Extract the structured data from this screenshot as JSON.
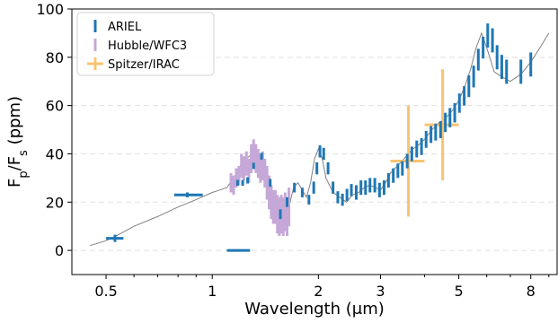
{
  "chart_data": {
    "type": "scatter",
    "xlabel": "Wavelength (μm)",
    "ylabel_parts": [
      "F",
      "p",
      "/F",
      "s",
      " (ppm)"
    ],
    "x_scale": "log",
    "xlim": [
      0.4,
      9.5
    ],
    "ylim": [
      -10,
      100
    ],
    "x_ticks": [
      {
        "value": 0.5,
        "label": "0.5"
      },
      {
        "value": 1,
        "label": "1"
      },
      {
        "value": 2,
        "label": "2"
      },
      {
        "value": 3,
        "label": "3"
      },
      {
        "value": 5,
        "label": "5"
      },
      {
        "value": 8,
        "label": "8"
      }
    ],
    "y_ticks": [
      0,
      20,
      40,
      60,
      80,
      100
    ],
    "grid": "horizontal dashed",
    "legend_position": "top-left",
    "legend": [
      {
        "label": "ARIEL",
        "color": "#1f77b4",
        "marker": "vertical-bar"
      },
      {
        "label": "Hubble/WFC3",
        "color": "#c5a8d8",
        "marker": "vertical-bar"
      },
      {
        "label": "Spitzer/IRAC",
        "color": "#f8c372",
        "marker": "cross"
      }
    ],
    "colors": {
      "model": "#808080",
      "ariel": "#1f77b4",
      "hubble": "#c5a8d8",
      "spitzer": "#f8c372"
    },
    "model_spectrum": {
      "x": [
        0.45,
        0.5,
        0.55,
        0.6,
        0.7,
        0.8,
        0.9,
        1.0,
        1.05,
        1.1,
        1.15,
        1.2,
        1.25,
        1.3,
        1.35,
        1.4,
        1.45,
        1.5,
        1.55,
        1.6,
        1.65,
        1.7,
        1.75,
        1.8,
        1.85,
        1.9,
        1.95,
        2.0,
        2.05,
        2.1,
        2.2,
        2.3,
        2.4,
        2.5,
        2.6,
        2.7,
        2.8,
        2.9,
        3.0,
        3.1,
        3.2,
        3.3,
        3.4,
        3.5,
        3.6,
        3.7,
        3.8,
        4.0,
        4.2,
        4.4,
        4.6,
        4.8,
        5.0,
        5.2,
        5.4,
        5.6,
        5.8,
        6.0,
        6.3,
        6.6,
        7.0,
        7.5,
        8.0,
        8.5,
        9.0
      ],
      "y": [
        2,
        4,
        7,
        10,
        14,
        18,
        21,
        24,
        25,
        26,
        30,
        35,
        38,
        40,
        38,
        34,
        28,
        22,
        18,
        14,
        18,
        26,
        28,
        25,
        22,
        28,
        38,
        42,
        38,
        30,
        24,
        22,
        20,
        23,
        24,
        26,
        27,
        26,
        25,
        28,
        32,
        34,
        36,
        38,
        40,
        42,
        43,
        46,
        50,
        53,
        55,
        58,
        62,
        68,
        75,
        84,
        90,
        84,
        74,
        72,
        70,
        73,
        78,
        84,
        90
      ]
    },
    "ariel": {
      "x": [
        0.53,
        0.85,
        1.18,
        1.22,
        1.26,
        1.31,
        1.38,
        1.46,
        1.56,
        1.63,
        1.71,
        1.8,
        1.88,
        1.94,
        1.98,
        2.02,
        2.07,
        2.13,
        2.2,
        2.27,
        2.34,
        2.41,
        2.48,
        2.56,
        2.64,
        2.72,
        2.8,
        2.89,
        2.98,
        3.07,
        3.16,
        3.26,
        3.36,
        3.46,
        3.57,
        3.68,
        3.8,
        3.92,
        4.04,
        4.17,
        4.3,
        4.44,
        4.58,
        4.72,
        4.87,
        5.02,
        5.18,
        5.34,
        5.51,
        5.68,
        5.86,
        6.04,
        6.23,
        6.42,
        6.62,
        6.83,
        7.5,
        8.0
      ],
      "y": [
        5,
        23,
        28,
        28,
        29,
        35,
        39,
        28,
        15,
        20,
        26,
        24,
        21,
        26,
        34,
        41,
        40,
        34,
        26,
        22,
        21,
        23,
        25,
        24,
        26,
        26,
        27,
        27,
        25,
        26,
        29,
        31,
        33,
        34,
        37,
        40,
        42,
        43,
        46,
        48,
        49,
        50,
        53,
        55,
        57,
        61,
        64,
        68,
        72,
        79,
        84,
        89,
        87,
        80,
        76,
        74,
        74,
        77
      ],
      "yerr": [
        1.5,
        1,
        1.2,
        1.2,
        1.3,
        1.3,
        1.4,
        1.6,
        2,
        2,
        2,
        2,
        2,
        2.5,
        2.5,
        2.5,
        2.5,
        2.5,
        2.5,
        2.5,
        2.5,
        2.5,
        2.5,
        3,
        3,
        3,
        3,
        3,
        3,
        3,
        3,
        3,
        3,
        3,
        3,
        3,
        3.5,
        3.5,
        3.5,
        3.5,
        3.5,
        3.5,
        4,
        4,
        4,
        4,
        4,
        4.5,
        4.5,
        4.5,
        4.5,
        5,
        5,
        5,
        5,
        5,
        5,
        5
      ],
      "xerr_points": [
        {
          "x": 0.53,
          "xlo": 0.5,
          "xhi": 0.56
        },
        {
          "x": 0.85,
          "xlo": 0.78,
          "xhi": 0.94
        },
        {
          "x": 1.2,
          "xlo": 1.1,
          "xhi": 1.28
        }
      ]
    },
    "hubble": {
      "x": [
        1.13,
        1.15,
        1.17,
        1.19,
        1.21,
        1.23,
        1.25,
        1.27,
        1.29,
        1.31,
        1.33,
        1.35,
        1.37,
        1.39,
        1.41,
        1.43,
        1.45,
        1.47,
        1.49,
        1.51,
        1.53,
        1.55,
        1.57,
        1.59,
        1.61,
        1.63,
        1.65
      ],
      "y": [
        28,
        27,
        30,
        31,
        35,
        34,
        36,
        33,
        38,
        40,
        38,
        36,
        34,
        35,
        32,
        28,
        24,
        20,
        18,
        18,
        15,
        14,
        15,
        14,
        16,
        14,
        18
      ],
      "yerr": [
        4,
        4,
        4,
        4,
        5,
        5,
        5,
        5,
        6,
        6,
        6,
        6,
        6,
        6,
        6,
        7,
        7,
        7,
        7,
        7,
        8,
        8,
        8,
        8,
        8,
        8,
        8
      ]
    },
    "spitzer": [
      {
        "x": 3.6,
        "y": 37,
        "xlo": 3.2,
        "xhi": 4.0,
        "yerr": 23
      },
      {
        "x": 4.5,
        "y": 52,
        "xlo": 4.0,
        "xhi": 5.0,
        "yerr": 23
      }
    ]
  }
}
